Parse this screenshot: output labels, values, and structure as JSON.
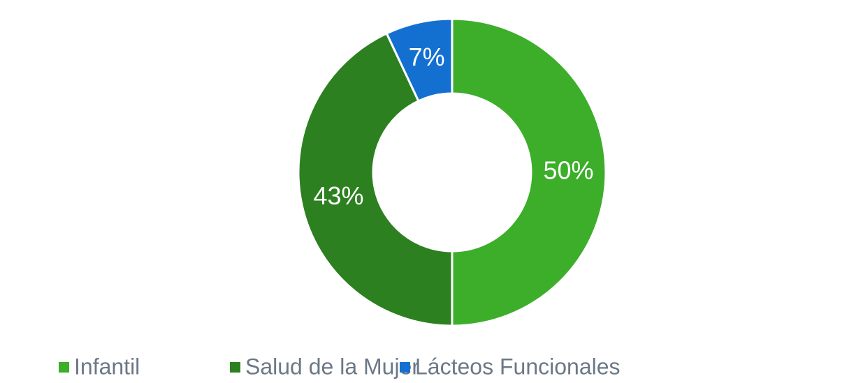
{
  "chart_data": {
    "type": "pie",
    "categories": [
      "Infantil",
      "Salud de la Mujer",
      "Lácteos Funcionales"
    ],
    "values": [
      50,
      43,
      7
    ],
    "value_labels": [
      "50%",
      "43%",
      "7%"
    ],
    "colors": [
      "#3cae29",
      "#2d8020",
      "#1370d0"
    ],
    "legend": "bottom"
  }
}
